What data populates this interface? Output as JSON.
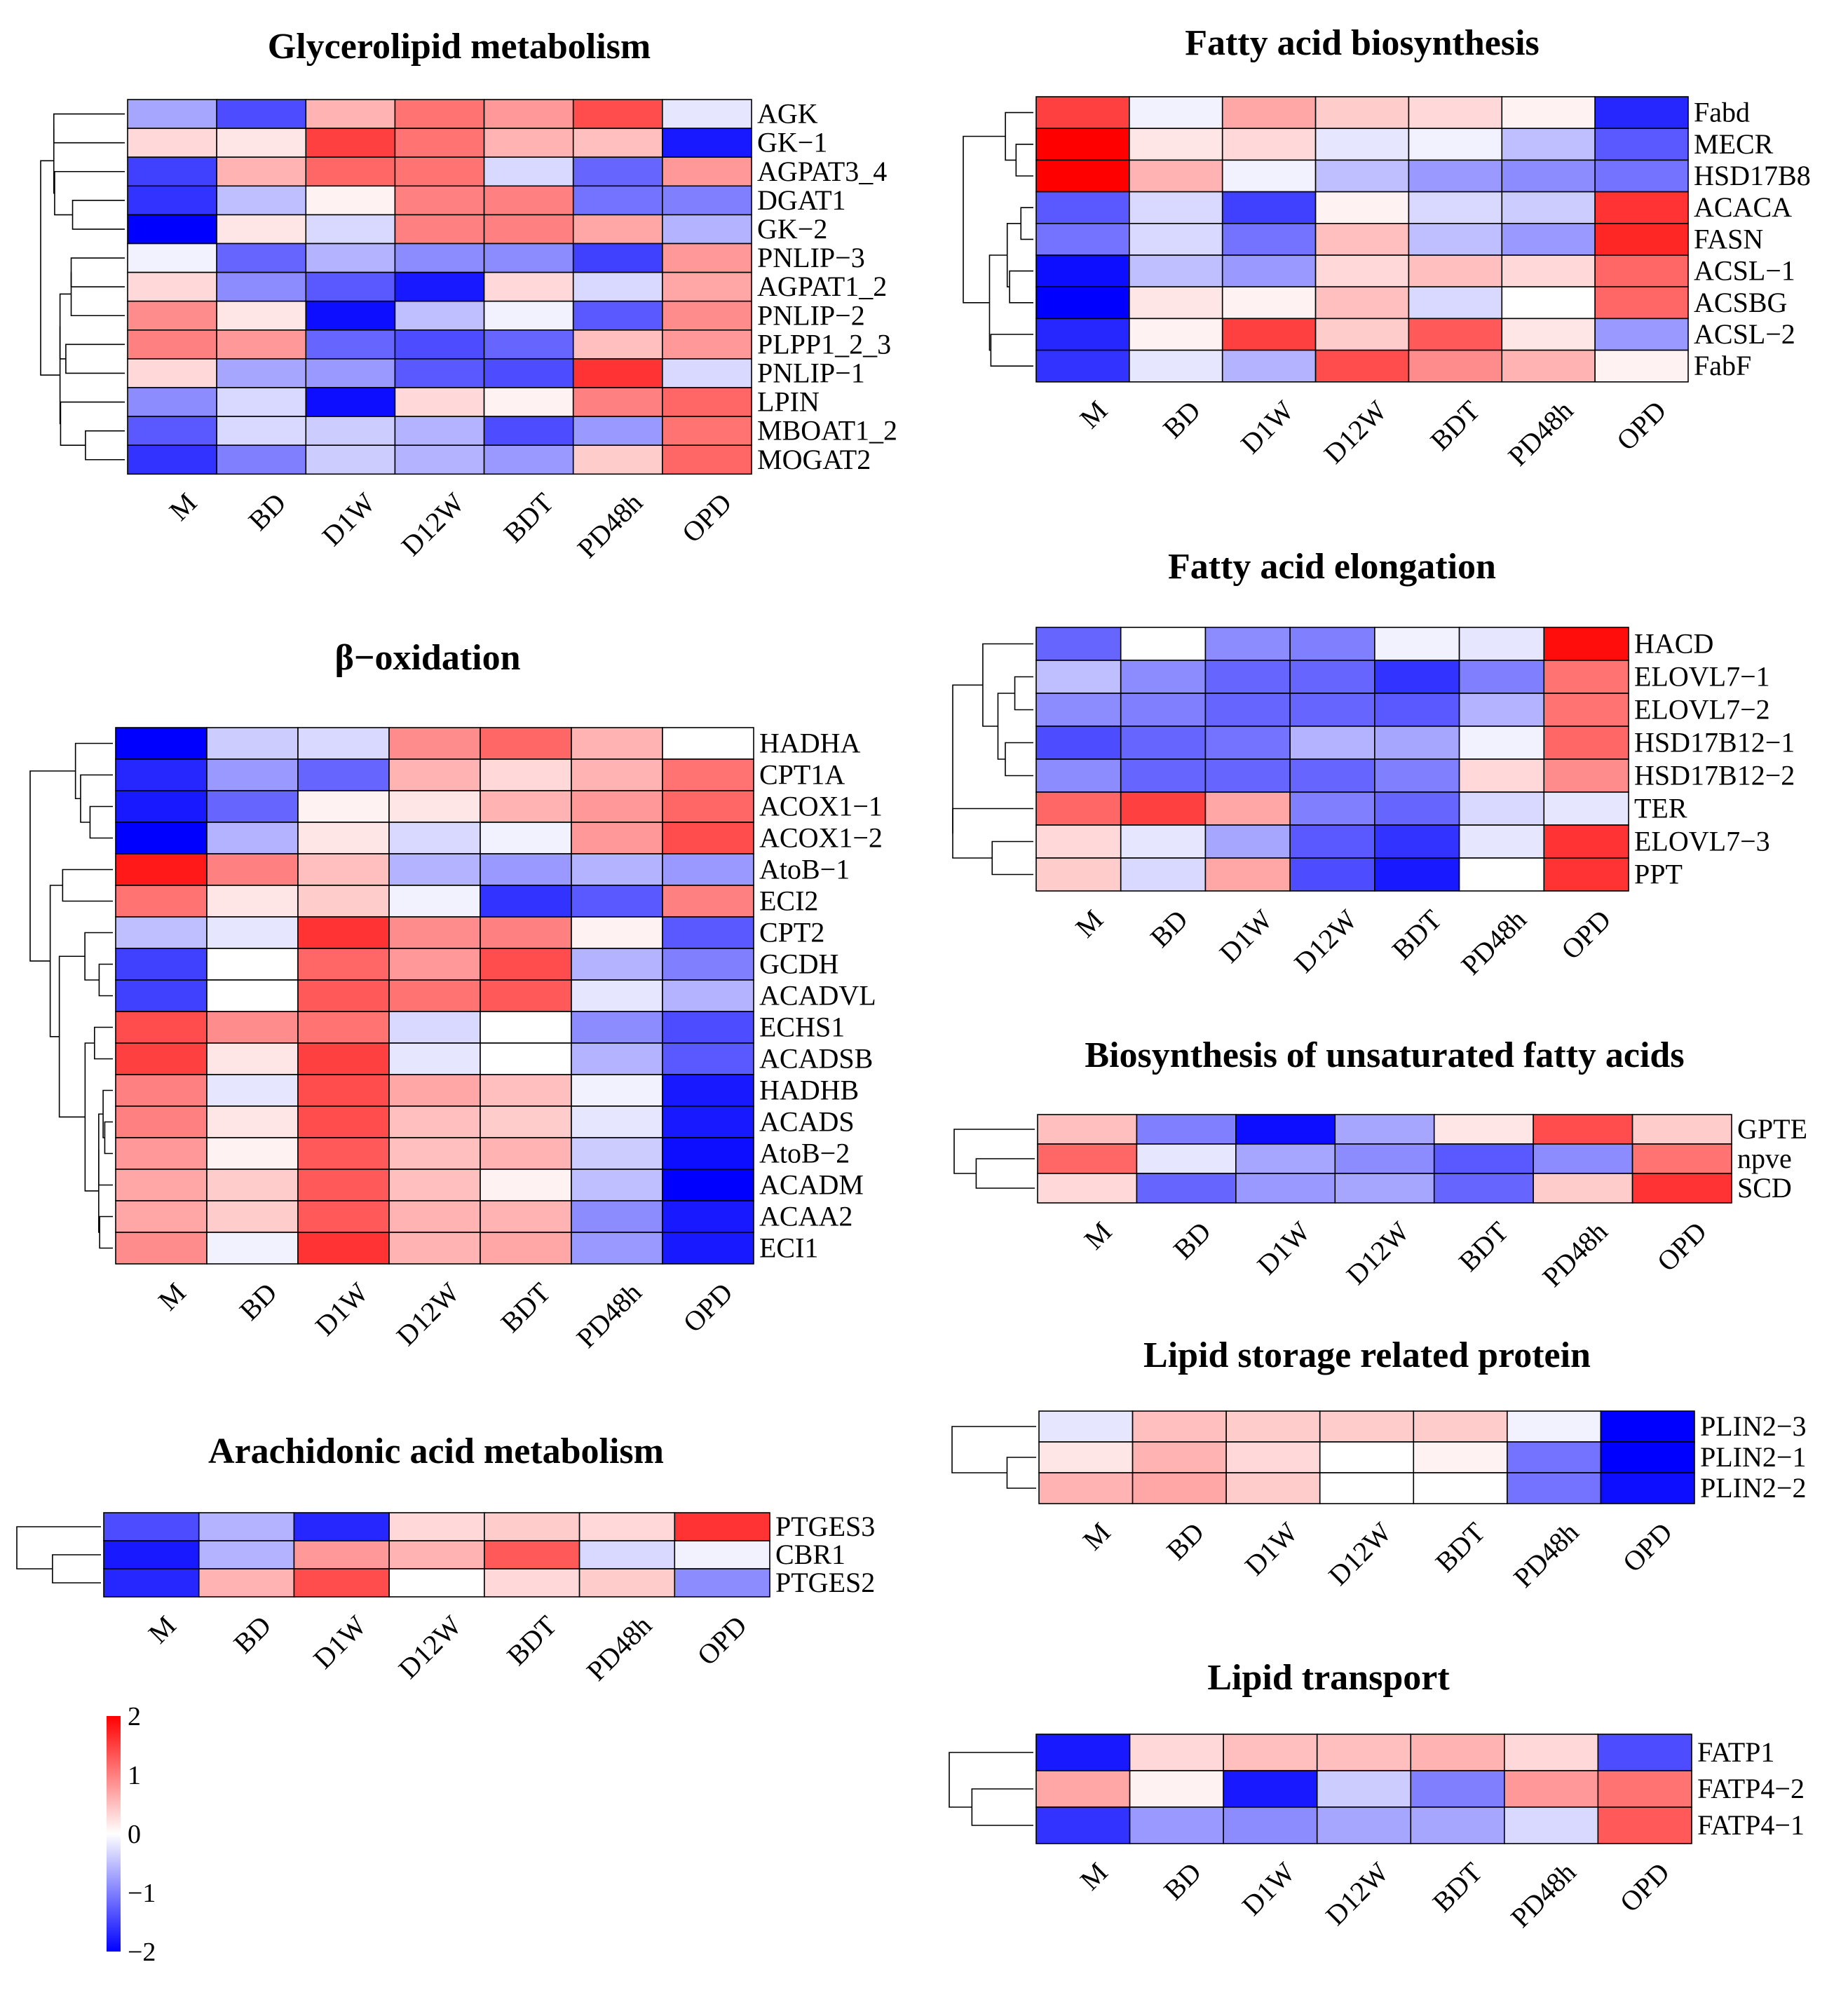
{
  "chart_data": [
    {
      "id": "glycerolipid",
      "type": "heatmap",
      "title": "Glycerolipid metabolism",
      "columns": [
        "M",
        "BD",
        "D1W",
        "D12W",
        "BDT",
        "PD48h",
        "OPD"
      ],
      "rows": [
        "AGK",
        "GK−1",
        "AGPAT3_4",
        "DGAT1",
        "GK−2",
        "PNLIP−3",
        "AGPAT1_2",
        "PNLIP−2",
        "PLPP1_2_3",
        "PNLIP−1",
        "LPIN",
        "MBOAT1_2",
        "MOGAT2"
      ],
      "values": [
        [
          -0.7,
          -1.4,
          0.6,
          1.1,
          0.8,
          1.4,
          -0.2
        ],
        [
          0.3,
          0.2,
          1.5,
          1.1,
          0.6,
          0.5,
          -1.8
        ],
        [
          -1.5,
          0.6,
          1.2,
          1.1,
          -0.3,
          -1.2,
          0.8
        ],
        [
          -1.6,
          -0.5,
          0.1,
          1.0,
          1.0,
          -1.1,
          -1.0
        ],
        [
          -2.0,
          0.2,
          -0.3,
          1.0,
          1.0,
          0.7,
          -0.6
        ],
        [
          -0.1,
          -1.2,
          -0.6,
          -0.9,
          -0.9,
          -1.5,
          0.8
        ],
        [
          0.3,
          -0.9,
          -1.3,
          -1.8,
          0.3,
          -0.3,
          0.7
        ],
        [
          0.9,
          0.2,
          -1.9,
          -0.5,
          -0.1,
          -1.3,
          0.9
        ],
        [
          1.0,
          0.8,
          -1.2,
          -1.4,
          -1.2,
          0.5,
          0.8
        ],
        [
          0.3,
          -0.7,
          -0.8,
          -1.3,
          -1.4,
          1.6,
          -0.3
        ],
        [
          -0.9,
          -0.3,
          -1.9,
          0.3,
          0.1,
          1.0,
          1.2
        ],
        [
          -1.3,
          -0.3,
          -0.4,
          -0.6,
          -1.4,
          -0.8,
          1.1
        ],
        [
          -1.6,
          -1.0,
          -0.4,
          -0.6,
          -0.8,
          0.4,
          1.2
        ]
      ]
    },
    {
      "id": "fa_biosynthesis",
      "type": "heatmap",
      "title": "Fatty acid biosynthesis",
      "columns": [
        "M",
        "BD",
        "D1W",
        "D12W",
        "BDT",
        "PD48h",
        "OPD"
      ],
      "rows": [
        "Fabd",
        "MECR",
        "HSD17B8",
        "ACACA",
        "FASN",
        "ACSL−1",
        "ACSBG",
        "ACSL−2",
        "FabF"
      ],
      "values": [
        [
          1.5,
          -0.1,
          0.7,
          0.4,
          0.3,
          0.1,
          -1.7
        ],
        [
          2.0,
          0.2,
          0.3,
          -0.2,
          -0.1,
          -0.5,
          -1.3
        ],
        [
          2.0,
          0.6,
          -0.1,
          -0.5,
          -0.8,
          -0.9,
          -1.1
        ],
        [
          -1.3,
          -0.3,
          -1.5,
          0.1,
          -0.3,
          -0.4,
          1.6
        ],
        [
          -1.1,
          -0.3,
          -1.1,
          0.5,
          -0.5,
          -0.8,
          1.7
        ],
        [
          -1.9,
          -0.5,
          -0.8,
          0.3,
          0.5,
          0.3,
          1.2
        ],
        [
          -2.0,
          0.2,
          0.1,
          0.5,
          -0.3,
          0.0,
          1.2
        ],
        [
          -1.7,
          0.1,
          1.5,
          0.4,
          1.3,
          0.2,
          -0.8
        ],
        [
          -1.6,
          -0.2,
          -0.6,
          1.4,
          0.9,
          0.6,
          0.1
        ]
      ]
    },
    {
      "id": "fa_elongation",
      "type": "heatmap",
      "title": "Fatty acid elongation",
      "columns": [
        "M",
        "BD",
        "D1W",
        "D12W",
        "BDT",
        "PD48h",
        "OPD"
      ],
      "rows": [
        "HACD",
        "ELOVL7−1",
        "ELOVL7−2",
        "HSD17B12−1",
        "HSD17B12−2",
        "TER",
        "ELOVL7−3",
        "PPT"
      ],
      "values": [
        [
          -1.2,
          0.0,
          -0.9,
          -1.0,
          -0.1,
          -0.2,
          1.9
        ],
        [
          -0.5,
          -0.9,
          -1.2,
          -1.2,
          -1.6,
          -1.0,
          1.1
        ],
        [
          -0.9,
          -1.0,
          -1.2,
          -1.2,
          -1.3,
          -0.6,
          1.1
        ],
        [
          -1.4,
          -1.2,
          -1.1,
          -0.6,
          -0.7,
          -0.1,
          1.2
        ],
        [
          -0.9,
          -1.2,
          -1.2,
          -1.2,
          -1.0,
          0.3,
          0.9
        ],
        [
          1.2,
          1.5,
          0.7,
          -1.0,
          -1.2,
          -0.3,
          -0.2
        ],
        [
          0.3,
          -0.2,
          -0.7,
          -1.3,
          -1.6,
          -0.2,
          1.6
        ],
        [
          0.4,
          -0.3,
          0.7,
          -1.4,
          -1.8,
          0.0,
          1.6
        ]
      ]
    },
    {
      "id": "unsat_fa",
      "type": "heatmap",
      "title": "Biosynthesis of unsaturated fatty acids",
      "columns": [
        "M",
        "BD",
        "D1W",
        "D12W",
        "BDT",
        "PD48h",
        "OPD"
      ],
      "rows": [
        "GPTE",
        "npve",
        "SCD"
      ],
      "values": [
        [
          0.5,
          -1.0,
          -1.9,
          -0.7,
          0.2,
          1.4,
          0.4
        ],
        [
          1.2,
          -0.2,
          -0.7,
          -0.9,
          -1.3,
          -0.9,
          1.1
        ],
        [
          0.3,
          -1.2,
          -0.8,
          -0.7,
          -1.2,
          0.4,
          1.6
        ]
      ]
    },
    {
      "id": "lipid_storage",
      "type": "heatmap",
      "title": "Lipid storage related protein",
      "columns": [
        "M",
        "BD",
        "D1W",
        "D12W",
        "BDT",
        "PD48h",
        "OPD"
      ],
      "rows": [
        "PLIN2−3",
        "PLIN2−1",
        "PLIN2−2"
      ],
      "values": [
        [
          -0.2,
          0.5,
          0.4,
          0.4,
          0.4,
          -0.1,
          -2.0
        ],
        [
          0.2,
          0.6,
          0.3,
          0.0,
          0.1,
          -1.1,
          -2.0
        ],
        [
          0.6,
          0.7,
          0.4,
          0.0,
          0.0,
          -1.1,
          -1.9
        ]
      ]
    },
    {
      "id": "lipid_transport",
      "type": "heatmap",
      "title": "Lipid transport",
      "columns": [
        "M",
        "BD",
        "D1W",
        "D12W",
        "BDT",
        "PD48h",
        "OPD"
      ],
      "rows": [
        "FATP1",
        "FATP4−2",
        "FATP4−1"
      ],
      "values": [
        [
          -1.8,
          0.3,
          0.5,
          0.5,
          0.6,
          0.3,
          -1.4
        ],
        [
          0.7,
          0.1,
          -1.8,
          -0.4,
          -1.0,
          0.8,
          1.1
        ],
        [
          -1.6,
          -0.8,
          -0.9,
          -0.7,
          -0.7,
          -0.3,
          1.3
        ]
      ]
    },
    {
      "id": "beta_oxidation",
      "type": "heatmap",
      "title": "β−oxidation",
      "columns": [
        "M",
        "BD",
        "D1W",
        "D12W",
        "BDT",
        "PD48h",
        "OPD"
      ],
      "rows": [
        "HADHA",
        "CPT1A",
        "ACOX1−1",
        "ACOX1−2",
        "AtoB−1",
        "ECI2",
        "CPT2",
        "GCDH",
        "ACADVL",
        "ECHS1",
        "ACADSB",
        "HADHB",
        "ACADS",
        "AtoB−2",
        "ACADM",
        "ACAA2",
        "ECI1"
      ],
      "values": [
        [
          -2.0,
          -0.4,
          -0.3,
          0.9,
          1.2,
          0.6,
          0.0
        ],
        [
          -1.7,
          -0.8,
          -1.2,
          0.6,
          0.3,
          0.6,
          1.1
        ],
        [
          -1.8,
          -1.2,
          0.1,
          0.2,
          0.6,
          0.8,
          1.2
        ],
        [
          -2.0,
          -0.6,
          0.2,
          -0.3,
          -0.1,
          0.8,
          1.4
        ],
        [
          1.8,
          1.0,
          0.5,
          -0.6,
          -0.8,
          -0.6,
          -0.8
        ],
        [
          1.1,
          0.2,
          0.4,
          -0.1,
          -1.6,
          -1.3,
          1.0
        ],
        [
          -0.5,
          -0.2,
          1.6,
          0.9,
          1.0,
          0.1,
          -1.3
        ],
        [
          -1.5,
          0.0,
          1.2,
          0.8,
          1.4,
          -0.6,
          -1.0
        ],
        [
          -1.5,
          0.0,
          1.3,
          1.1,
          1.3,
          -0.2,
          -0.6
        ],
        [
          1.4,
          0.9,
          1.1,
          -0.3,
          0.0,
          -0.9,
          -1.4
        ],
        [
          1.5,
          0.2,
          1.5,
          -0.2,
          0.0,
          -0.6,
          -1.3
        ],
        [
          1.0,
          -0.2,
          1.4,
          0.7,
          0.5,
          -0.1,
          -1.8
        ],
        [
          1.0,
          0.2,
          1.4,
          0.5,
          0.4,
          -0.2,
          -1.8
        ],
        [
          0.8,
          0.1,
          1.3,
          0.5,
          0.6,
          -0.4,
          -1.9
        ],
        [
          0.7,
          0.4,
          1.3,
          0.5,
          0.1,
          -0.5,
          -2.0
        ],
        [
          0.7,
          0.4,
          1.3,
          0.6,
          0.6,
          -0.9,
          -1.8
        ],
        [
          0.9,
          -0.1,
          1.6,
          0.6,
          0.7,
          -0.8,
          -1.8
        ]
      ]
    },
    {
      "id": "arachidonic",
      "type": "heatmap",
      "title": "Arachidonic acid metabolism",
      "columns": [
        "M",
        "BD",
        "D1W",
        "D12W",
        "BDT",
        "PD48h",
        "OPD"
      ],
      "rows": [
        "PTGES3",
        "CBR1",
        "PTGES2"
      ],
      "values": [
        [
          -1.4,
          -0.6,
          -1.7,
          0.3,
          0.4,
          0.3,
          1.6
        ],
        [
          -1.8,
          -0.6,
          0.8,
          0.6,
          1.3,
          -0.3,
          -0.1
        ],
        [
          -1.7,
          0.6,
          1.4,
          0.0,
          0.3,
          0.4,
          -0.9
        ]
      ]
    }
  ],
  "colorbar": {
    "ticks": [
      "2",
      "1",
      "0",
      "−1",
      "−2"
    ],
    "range": [
      -2,
      2
    ],
    "low_color": "#0000ff",
    "mid_color": "#ffffff",
    "high_color": "#ff0000"
  }
}
